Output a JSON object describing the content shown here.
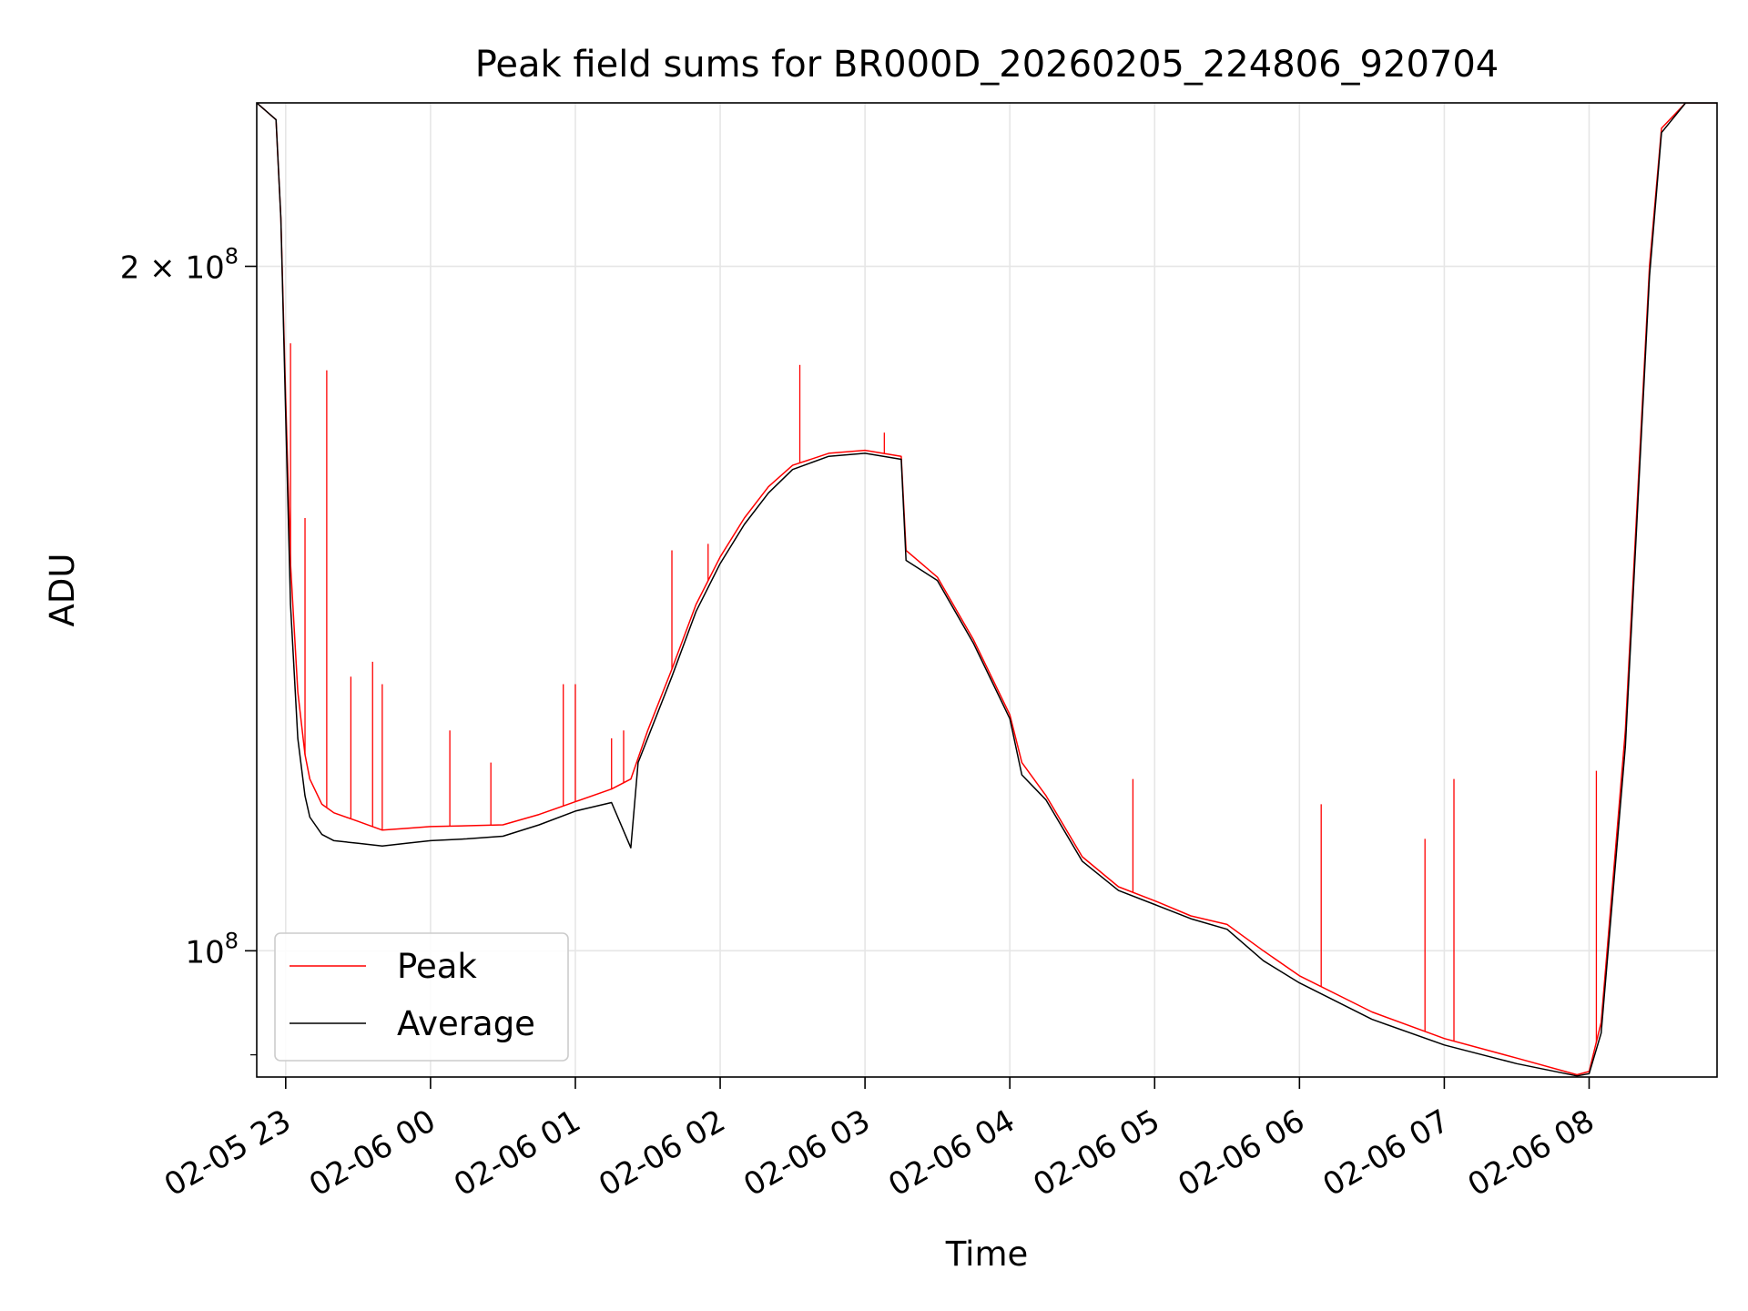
{
  "chart_data": {
    "type": "line",
    "title": "Peak field sums for BR000D_20260205_224806_920704",
    "xlabel": "Time",
    "ylabel": "ADU",
    "y_scale": "log",
    "ylim": [
      88000000,
      236000000
    ],
    "xlim": [
      "2026-02-05 22:48",
      "2026-02-06 08:53"
    ],
    "grid": true,
    "legend_position": "lower-left",
    "x_ticks": [
      {
        "time": "2026-02-05 23:00",
        "label": "02-05 23"
      },
      {
        "time": "2026-02-06 00:00",
        "label": "02-06 00"
      },
      {
        "time": "2026-02-06 01:00",
        "label": "02-06 01"
      },
      {
        "time": "2026-02-06 02:00",
        "label": "02-06 02"
      },
      {
        "time": "2026-02-06 03:00",
        "label": "02-06 03"
      },
      {
        "time": "2026-02-06 04:00",
        "label": "02-06 04"
      },
      {
        "time": "2026-02-06 05:00",
        "label": "02-06 05"
      },
      {
        "time": "2026-02-06 06:00",
        "label": "02-06 06"
      },
      {
        "time": "2026-02-06 07:00",
        "label": "02-06 07"
      },
      {
        "time": "2026-02-06 08:00",
        "label": "02-06 08"
      }
    ],
    "y_ticks": [
      {
        "value": 200000000,
        "base": "2 × 10",
        "exp": "8"
      },
      {
        "value": 100000000,
        "base": "10",
        "exp": "8"
      }
    ],
    "series": [
      {
        "name": "Peak",
        "color": "#ff0000",
        "points": [
          [
            "2026-02-05 22:48",
            236000000
          ],
          [
            "2026-02-05 22:56",
            232000000
          ],
          [
            "2026-02-05 22:58",
            210000000
          ],
          [
            "2026-02-05 23:00",
            175000000
          ],
          [
            "2026-02-05 23:02",
            148000000
          ],
          [
            "2026-02-05 23:05",
            130000000
          ],
          [
            "2026-02-05 23:08",
            122000000
          ],
          [
            "2026-02-05 23:10",
            119000000
          ],
          [
            "2026-02-05 23:15",
            116000000
          ],
          [
            "2026-02-05 23:20",
            115000000
          ],
          [
            "2026-02-05 23:30",
            114000000
          ],
          [
            "2026-02-05 23:40",
            113000000
          ],
          [
            "2026-02-05 23:50",
            113200000
          ],
          [
            "2026-02-06 00:00",
            113400000
          ],
          [
            "2026-02-06 00:15",
            113500000
          ],
          [
            "2026-02-06 00:30",
            113600000
          ],
          [
            "2026-02-06 00:45",
            114800000
          ],
          [
            "2026-02-06 01:00",
            116300000
          ],
          [
            "2026-02-06 01:15",
            117800000
          ],
          [
            "2026-02-06 01:23",
            119000000
          ],
          [
            "2026-02-06 01:30",
            125000000
          ],
          [
            "2026-02-06 01:40",
            133000000
          ],
          [
            "2026-02-06 01:50",
            142000000
          ],
          [
            "2026-02-06 02:00",
            149000000
          ],
          [
            "2026-02-06 02:10",
            155000000
          ],
          [
            "2026-02-06 02:20",
            160000000
          ],
          [
            "2026-02-06 02:30",
            163500000
          ],
          [
            "2026-02-06 02:45",
            165500000
          ],
          [
            "2026-02-06 03:00",
            166000000
          ],
          [
            "2026-02-06 03:15",
            165000000
          ],
          [
            "2026-02-06 03:17",
            150000000
          ],
          [
            "2026-02-06 03:30",
            146000000
          ],
          [
            "2026-02-06 03:45",
            137000000
          ],
          [
            "2026-02-06 04:00",
            127000000
          ],
          [
            "2026-02-06 04:05",
            121000000
          ],
          [
            "2026-02-06 04:15",
            117000000
          ],
          [
            "2026-02-06 04:30",
            110000000
          ],
          [
            "2026-02-06 04:45",
            106700000
          ],
          [
            "2026-02-06 05:00",
            105200000
          ],
          [
            "2026-02-06 05:15",
            103600000
          ],
          [
            "2026-02-06 05:30",
            102700000
          ],
          [
            "2026-02-06 05:45",
            100000000
          ],
          [
            "2026-02-06 06:00",
            97500000
          ],
          [
            "2026-02-06 06:30",
            94000000
          ],
          [
            "2026-02-06 07:00",
            91500000
          ],
          [
            "2026-02-06 07:30",
            89700000
          ],
          [
            "2026-02-06 07:55",
            88200000
          ],
          [
            "2026-02-06 08:00",
            88500000
          ],
          [
            "2026-02-06 08:05",
            93000000
          ],
          [
            "2026-02-06 08:15",
            125000000
          ],
          [
            "2026-02-06 08:25",
            200000000
          ],
          [
            "2026-02-06 08:30",
            230000000
          ],
          [
            "2026-02-06 08:40",
            236000000
          ],
          [
            "2026-02-06 08:53",
            236000000
          ]
        ],
        "spikes": [
          [
            "2026-02-05 23:02",
            185000000
          ],
          [
            "2026-02-05 23:08",
            155000000
          ],
          [
            "2026-02-05 23:17",
            180000000
          ],
          [
            "2026-02-05 23:27",
            132000000
          ],
          [
            "2026-02-05 23:36",
            134000000
          ],
          [
            "2026-02-05 23:40",
            131000000
          ],
          [
            "2026-02-06 00:08",
            125000000
          ],
          [
            "2026-02-06 00:25",
            121000000
          ],
          [
            "2026-02-06 00:55",
            131000000
          ],
          [
            "2026-02-06 01:00",
            131000000
          ],
          [
            "2026-02-06 01:15",
            124000000
          ],
          [
            "2026-02-06 01:20",
            125000000
          ],
          [
            "2026-02-06 01:40",
            150000000
          ],
          [
            "2026-02-06 01:55",
            151000000
          ],
          [
            "2026-02-06 02:33",
            181000000
          ],
          [
            "2026-02-06 03:08",
            169000000
          ],
          [
            "2026-02-06 04:51",
            119000000
          ],
          [
            "2026-02-06 06:09",
            116000000
          ],
          [
            "2026-02-06 06:52",
            112000000
          ],
          [
            "2026-02-06 07:04",
            119000000
          ],
          [
            "2026-02-06 08:03",
            120000000
          ]
        ]
      },
      {
        "name": "Average",
        "color": "#000000",
        "points": [
          [
            "2026-02-05 22:48",
            236000000
          ],
          [
            "2026-02-05 22:56",
            232000000
          ],
          [
            "2026-02-05 22:58",
            210000000
          ],
          [
            "2026-02-05 23:00",
            172000000
          ],
          [
            "2026-02-05 23:02",
            142000000
          ],
          [
            "2026-02-05 23:05",
            124000000
          ],
          [
            "2026-02-05 23:08",
            117000000
          ],
          [
            "2026-02-05 23:10",
            114500000
          ],
          [
            "2026-02-05 23:15",
            112500000
          ],
          [
            "2026-02-05 23:20",
            111800000
          ],
          [
            "2026-02-05 23:30",
            111500000
          ],
          [
            "2026-02-05 23:40",
            111200000
          ],
          [
            "2026-02-05 23:50",
            111500000
          ],
          [
            "2026-02-06 00:00",
            111800000
          ],
          [
            "2026-02-06 00:15",
            112000000
          ],
          [
            "2026-02-06 00:30",
            112300000
          ],
          [
            "2026-02-06 00:45",
            113600000
          ],
          [
            "2026-02-06 01:00",
            115200000
          ],
          [
            "2026-02-06 01:15",
            116200000
          ],
          [
            "2026-02-06 01:23",
            111000000
          ],
          [
            "2026-02-06 01:26",
            121000000
          ],
          [
            "2026-02-06 01:40",
            132000000
          ],
          [
            "2026-02-06 01:50",
            141000000
          ],
          [
            "2026-02-06 02:00",
            148000000
          ],
          [
            "2026-02-06 02:10",
            154000000
          ],
          [
            "2026-02-06 02:20",
            159000000
          ],
          [
            "2026-02-06 02:30",
            162800000
          ],
          [
            "2026-02-06 02:45",
            165000000
          ],
          [
            "2026-02-06 03:00",
            165500000
          ],
          [
            "2026-02-06 03:15",
            164500000
          ],
          [
            "2026-02-06 03:17",
            148500000
          ],
          [
            "2026-02-06 03:30",
            145500000
          ],
          [
            "2026-02-06 03:45",
            136500000
          ],
          [
            "2026-02-06 04:00",
            126500000
          ],
          [
            "2026-02-06 04:05",
            119500000
          ],
          [
            "2026-02-06 04:15",
            116500000
          ],
          [
            "2026-02-06 04:30",
            109500000
          ],
          [
            "2026-02-06 04:45",
            106300000
          ],
          [
            "2026-02-06 05:00",
            104800000
          ],
          [
            "2026-02-06 05:15",
            103300000
          ],
          [
            "2026-02-06 05:30",
            102200000
          ],
          [
            "2026-02-06 05:45",
            99000000
          ],
          [
            "2026-02-06 06:00",
            96800000
          ],
          [
            "2026-02-06 06:30",
            93300000
          ],
          [
            "2026-02-06 07:00",
            90900000
          ],
          [
            "2026-02-06 07:30",
            89200000
          ],
          [
            "2026-02-06 07:55",
            88100000
          ],
          [
            "2026-02-06 08:00",
            88300000
          ],
          [
            "2026-02-06 08:05",
            92000000
          ],
          [
            "2026-02-06 08:15",
            123000000
          ],
          [
            "2026-02-06 08:25",
            198000000
          ],
          [
            "2026-02-06 08:30",
            229000000
          ],
          [
            "2026-02-06 08:40",
            236000000
          ],
          [
            "2026-02-06 08:53",
            236000000
          ]
        ]
      }
    ]
  }
}
